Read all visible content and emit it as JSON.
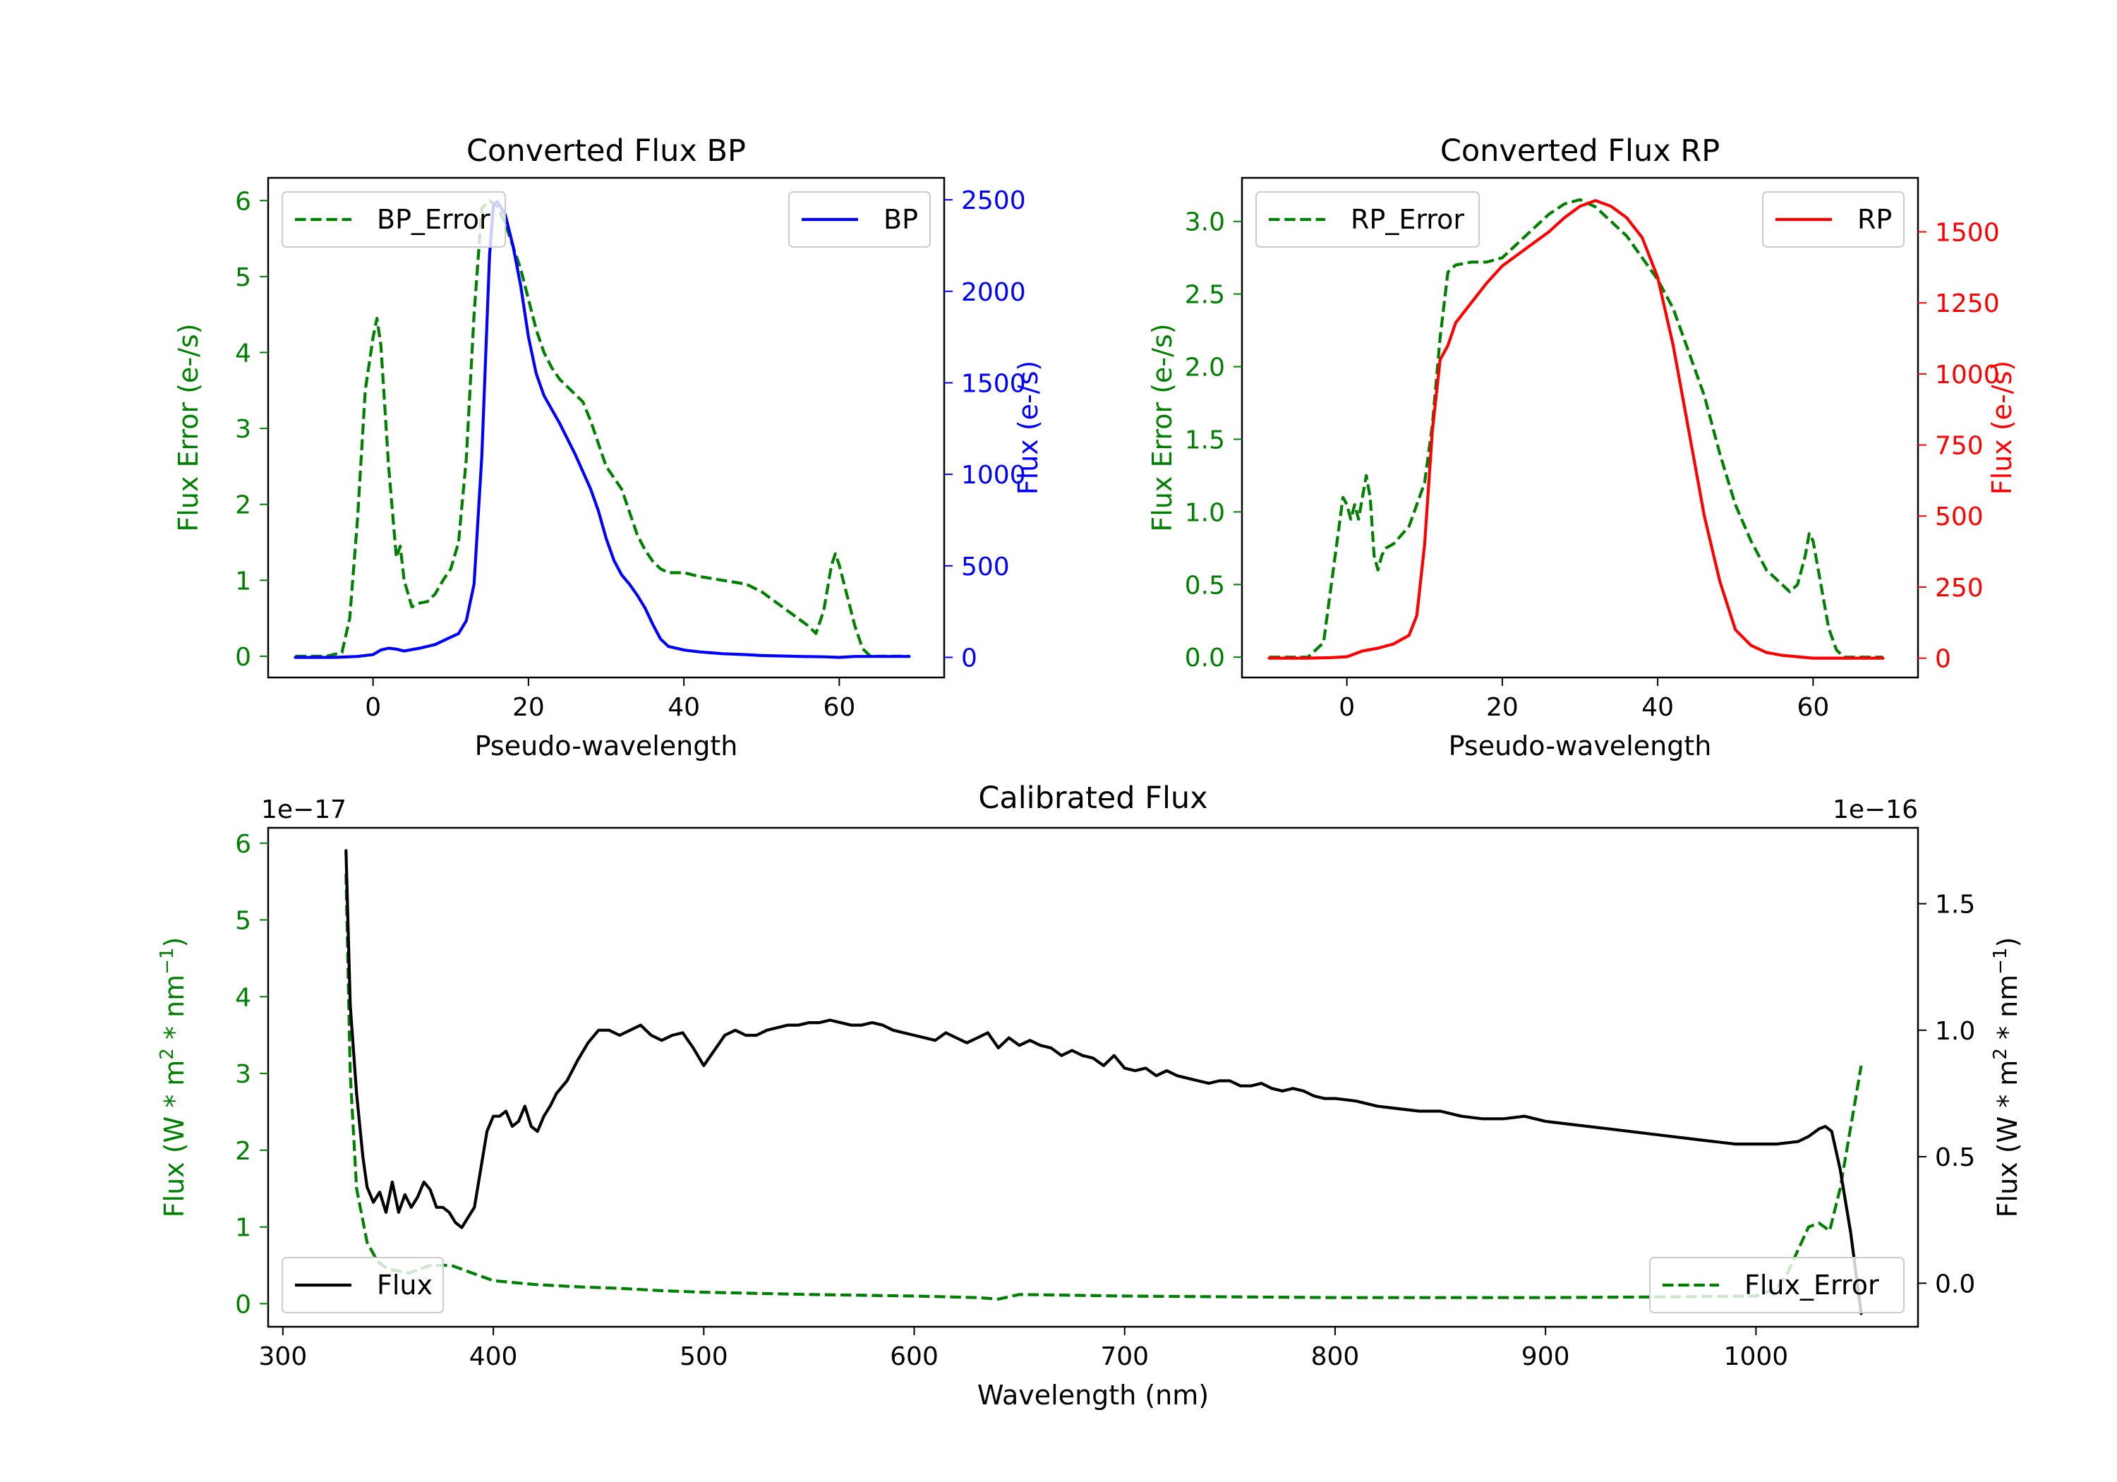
{
  "colors": {
    "bp": "#0000ff",
    "rp": "#ff0000",
    "error": "#008000",
    "flux": "#000000",
    "axis": "#000000"
  },
  "chart_data": [
    {
      "id": "bp",
      "type": "line",
      "title": "Converted Flux BP",
      "xlabel": "Pseudo-wavelength",
      "xlim": [
        -13.5,
        73.5
      ],
      "xticks": [
        0,
        20,
        40,
        60
      ],
      "left_axis": {
        "label": "Flux Error (e-/s)",
        "color": "#008000",
        "ylim": [
          -0.28,
          6.3
        ],
        "ticks": [
          0,
          1,
          2,
          3,
          4,
          5,
          6
        ]
      },
      "right_axis": {
        "label": "Flux (e-/s)",
        "color": "#0000ff",
        "ylim": [
          -110,
          2620
        ],
        "ticks": [
          0,
          500,
          1000,
          1500,
          2000,
          2500
        ]
      },
      "series": [
        {
          "name": "BP_Error",
          "axis": "left",
          "style": "dashed",
          "color": "#008000",
          "legend": "top-left",
          "x": [
            -10,
            -6,
            -4,
            -3,
            -2,
            -1,
            0,
            0.5,
            1,
            2,
            3,
            3.5,
            4,
            5,
            6,
            7,
            8,
            9,
            10,
            11,
            12,
            13,
            14,
            15,
            16,
            17,
            18,
            19,
            20,
            21,
            22,
            23,
            24,
            25,
            26,
            27,
            28,
            29,
            30,
            31,
            32,
            33,
            34,
            35,
            36,
            37,
            38,
            40,
            42,
            45,
            48,
            50,
            52,
            54,
            56,
            57,
            58,
            59,
            59.5,
            60,
            61,
            62,
            63,
            64,
            66,
            69
          ],
          "values": [
            0,
            0,
            0.05,
            0.5,
            1.8,
            3.5,
            4.2,
            4.45,
            4.1,
            2.5,
            1.3,
            1.45,
            1.0,
            0.65,
            0.7,
            0.72,
            0.82,
            1.0,
            1.15,
            1.5,
            2.6,
            4.5,
            5.9,
            6.0,
            5.92,
            5.7,
            5.4,
            5.1,
            4.7,
            4.3,
            4.0,
            3.8,
            3.65,
            3.55,
            3.45,
            3.35,
            3.1,
            2.8,
            2.5,
            2.35,
            2.2,
            1.9,
            1.6,
            1.4,
            1.25,
            1.15,
            1.1,
            1.1,
            1.05,
            1.0,
            0.95,
            0.85,
            0.7,
            0.55,
            0.4,
            0.3,
            0.6,
            1.2,
            1.35,
            1.2,
            0.8,
            0.4,
            0.1,
            0,
            0,
            0
          ]
        },
        {
          "name": "BP",
          "axis": "right",
          "style": "solid",
          "color": "#0000ff",
          "legend": "top-right",
          "x": [
            -10,
            -5,
            -2,
            0,
            1,
            2,
            3,
            4,
            6,
            8,
            10,
            11,
            12,
            13,
            14,
            15,
            15.5,
            16,
            17,
            18,
            19,
            20,
            21,
            22,
            24,
            26,
            28,
            29,
            30,
            31,
            32,
            33,
            34,
            35,
            36,
            37,
            38,
            40,
            42,
            45,
            48,
            50,
            55,
            58,
            60,
            62,
            65,
            69
          ],
          "values": [
            0,
            0,
            5,
            15,
            40,
            50,
            45,
            35,
            50,
            70,
            110,
            130,
            200,
            400,
            1100,
            2200,
            2470,
            2490,
            2420,
            2250,
            2030,
            1750,
            1550,
            1430,
            1280,
            1110,
            920,
            800,
            650,
            530,
            450,
            400,
            340,
            270,
            180,
            100,
            60,
            40,
            30,
            20,
            15,
            10,
            5,
            3,
            0,
            5,
            5,
            5
          ]
        }
      ]
    },
    {
      "id": "rp",
      "type": "line",
      "title": "Converted Flux RP",
      "xlabel": "Pseudo-wavelength",
      "xlim": [
        -13.5,
        73.5
      ],
      "xticks": [
        0,
        20,
        40,
        60
      ],
      "left_axis": {
        "label": "Flux Error (e-/s)",
        "color": "#008000",
        "ylim": [
          -0.14,
          3.3
        ],
        "ticks": [
          0.0,
          0.5,
          1.0,
          1.5,
          2.0,
          2.5,
          3.0
        ]
      },
      "right_axis": {
        "label": "Flux (e-/s)",
        "color": "#ff0000",
        "ylim": [
          -68,
          1690
        ],
        "ticks": [
          0,
          250,
          500,
          750,
          1000,
          1250,
          1500
        ]
      },
      "series": [
        {
          "name": "RP_Error",
          "axis": "left",
          "style": "dashed",
          "color": "#008000",
          "legend": "top-left",
          "x": [
            -10,
            -5,
            -3,
            -2,
            -1,
            -0.5,
            0,
            0.5,
            1,
            1.5,
            2,
            2.5,
            3,
            3.5,
            4,
            4.5,
            5,
            6,
            8,
            10,
            11,
            12,
            13,
            14,
            16,
            18,
            20,
            22,
            24,
            26,
            28,
            30,
            32,
            34,
            36,
            38,
            40,
            42,
            44,
            46,
            48,
            50,
            52,
            53,
            54,
            56,
            57,
            58,
            59,
            59.5,
            60,
            61,
            62,
            63,
            64,
            66,
            69
          ],
          "values": [
            0,
            0,
            0.1,
            0.5,
            0.9,
            1.1,
            1.05,
            0.95,
            1.05,
            0.95,
            1.1,
            1.25,
            1.1,
            0.7,
            0.6,
            0.7,
            0.75,
            0.78,
            0.9,
            1.2,
            1.6,
            2.2,
            2.65,
            2.7,
            2.72,
            2.72,
            2.75,
            2.85,
            2.95,
            3.05,
            3.12,
            3.15,
            3.1,
            3.0,
            2.9,
            2.75,
            2.6,
            2.4,
            2.1,
            1.8,
            1.4,
            1.05,
            0.8,
            0.7,
            0.6,
            0.5,
            0.45,
            0.5,
            0.7,
            0.85,
            0.8,
            0.5,
            0.2,
            0.05,
            0,
            0,
            0
          ]
        },
        {
          "name": "RP",
          "axis": "right",
          "style": "solid",
          "color": "#ff0000",
          "legend": "top-right",
          "x": [
            -10,
            -5,
            -2,
            0,
            2,
            4,
            6,
            8,
            9,
            10,
            11,
            12,
            13,
            14,
            16,
            18,
            20,
            22,
            24,
            26,
            28,
            30,
            32,
            34,
            36,
            38,
            40,
            42,
            44,
            46,
            48,
            50,
            52,
            54,
            56,
            58,
            60,
            62,
            65,
            69
          ],
          "values": [
            0,
            0,
            2,
            5,
            25,
            35,
            50,
            80,
            150,
            400,
            800,
            1050,
            1100,
            1180,
            1250,
            1320,
            1380,
            1420,
            1460,
            1500,
            1550,
            1590,
            1610,
            1590,
            1550,
            1480,
            1340,
            1100,
            800,
            500,
            270,
            100,
            45,
            20,
            10,
            5,
            0,
            0,
            0,
            0
          ]
        }
      ]
    },
    {
      "id": "calibrated",
      "type": "line",
      "title": "Calibrated Flux",
      "xlabel": "Wavelength (nm)",
      "xlim": [
        293,
        1077
      ],
      "xticks": [
        300,
        400,
        500,
        600,
        700,
        800,
        900,
        1000
      ],
      "left_axis": {
        "label": "Flux (W * m",
        "label_sup1": "2",
        "label_mid": " * nm",
        "label_sup2": "−1",
        "label_end": ")",
        "color": "#008000",
        "offset_text": "1e−17",
        "ylim": [
          -0.3,
          6.2
        ],
        "ticks": [
          0,
          1,
          2,
          3,
          4,
          5,
          6
        ]
      },
      "right_axis": {
        "label": "Flux (W * m",
        "label_sup1": "2",
        "label_mid": " * nm",
        "label_sup2": "−1",
        "label_end": ")",
        "color": "#000000",
        "offset_text": "1e−16",
        "ylim": [
          -0.172,
          1.8
        ],
        "ticks": [
          0.0,
          0.5,
          1.0,
          1.5
        ]
      },
      "series": [
        {
          "name": "Flux_Error",
          "axis": "left",
          "style": "dashed",
          "color": "#008000",
          "legend": "bottom-right",
          "x": [
            330,
            332,
            335,
            340,
            345,
            350,
            360,
            370,
            380,
            390,
            400,
            420,
            440,
            460,
            480,
            500,
            550,
            600,
            630,
            640,
            650,
            700,
            800,
            900,
            960,
            1000,
            1010,
            1015,
            1020,
            1025,
            1030,
            1035,
            1040,
            1045,
            1050
          ],
          "values": [
            5.6,
            3.0,
            1.5,
            0.8,
            0.55,
            0.45,
            0.4,
            0.5,
            0.5,
            0.4,
            0.3,
            0.25,
            0.22,
            0.2,
            0.17,
            0.15,
            0.12,
            0.1,
            0.08,
            0.06,
            0.12,
            0.1,
            0.08,
            0.08,
            0.09,
            0.1,
            0.2,
            0.4,
            0.7,
            1.0,
            1.05,
            0.95,
            1.5,
            2.3,
            3.1
          ]
        },
        {
          "name": "Flux",
          "axis": "right",
          "style": "solid",
          "color": "#000000",
          "legend": "bottom-left",
          "x": [
            330,
            332,
            335,
            338,
            340,
            343,
            346,
            349,
            352,
            355,
            358,
            361,
            364,
            367,
            370,
            373,
            376,
            379,
            382,
            385,
            388,
            391,
            394,
            397,
            400,
            403,
            406,
            409,
            412,
            415,
            418,
            421,
            424,
            427,
            430,
            435,
            440,
            445,
            450,
            455,
            460,
            465,
            470,
            475,
            480,
            485,
            490,
            495,
            500,
            505,
            510,
            515,
            520,
            525,
            530,
            535,
            540,
            545,
            550,
            555,
            560,
            565,
            570,
            575,
            580,
            585,
            590,
            595,
            600,
            605,
            610,
            615,
            620,
            625,
            630,
            635,
            640,
            645,
            650,
            655,
            660,
            665,
            670,
            675,
            680,
            685,
            690,
            695,
            700,
            705,
            710,
            715,
            720,
            725,
            730,
            735,
            740,
            745,
            750,
            755,
            760,
            765,
            770,
            775,
            780,
            785,
            790,
            795,
            800,
            810,
            820,
            830,
            840,
            850,
            860,
            870,
            880,
            890,
            900,
            910,
            920,
            930,
            940,
            950,
            960,
            970,
            980,
            990,
            1000,
            1010,
            1020,
            1025,
            1030,
            1033,
            1036,
            1040,
            1045,
            1050
          ],
          "values": [
            1.71,
            1.1,
            0.75,
            0.5,
            0.38,
            0.32,
            0.36,
            0.28,
            0.4,
            0.28,
            0.35,
            0.3,
            0.34,
            0.4,
            0.37,
            0.3,
            0.3,
            0.28,
            0.24,
            0.22,
            0.26,
            0.3,
            0.45,
            0.6,
            0.66,
            0.66,
            0.68,
            0.62,
            0.64,
            0.7,
            0.62,
            0.6,
            0.66,
            0.7,
            0.75,
            0.8,
            0.88,
            0.95,
            1.0,
            1.0,
            0.98,
            1.0,
            1.02,
            0.98,
            0.96,
            0.98,
            0.99,
            0.93,
            0.86,
            0.92,
            0.98,
            1.0,
            0.98,
            0.98,
            1.0,
            1.01,
            1.02,
            1.02,
            1.03,
            1.03,
            1.04,
            1.03,
            1.02,
            1.02,
            1.03,
            1.02,
            1.0,
            0.99,
            0.98,
            0.97,
            0.96,
            0.99,
            0.97,
            0.95,
            0.97,
            0.99,
            0.93,
            0.97,
            0.94,
            0.96,
            0.94,
            0.93,
            0.9,
            0.92,
            0.9,
            0.89,
            0.86,
            0.9,
            0.85,
            0.84,
            0.85,
            0.82,
            0.84,
            0.82,
            0.81,
            0.8,
            0.79,
            0.8,
            0.8,
            0.78,
            0.78,
            0.79,
            0.77,
            0.76,
            0.77,
            0.76,
            0.74,
            0.73,
            0.73,
            0.72,
            0.7,
            0.69,
            0.68,
            0.68,
            0.66,
            0.65,
            0.65,
            0.66,
            0.64,
            0.63,
            0.62,
            0.61,
            0.6,
            0.59,
            0.58,
            0.57,
            0.56,
            0.55,
            0.55,
            0.55,
            0.56,
            0.58,
            0.61,
            0.62,
            0.6,
            0.45,
            0.2,
            -0.12
          ]
        }
      ]
    }
  ]
}
